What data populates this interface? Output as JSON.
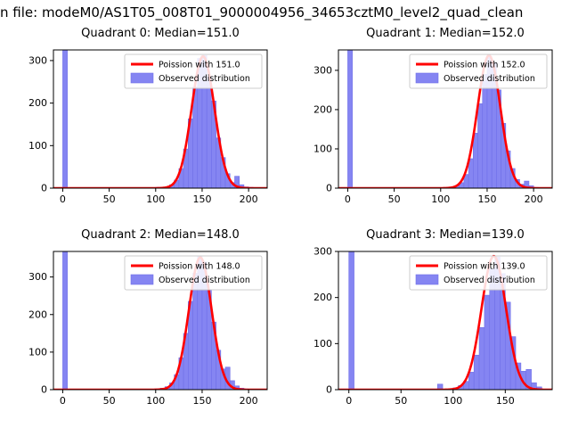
{
  "figure": {
    "suptitle": "n file: modeM0/AS1T05_008T01_9000004956_34653cztM0_level2_quad_clean",
    "background": "#ffffff"
  },
  "colors": {
    "fit_line": "#ff0000",
    "hist_fill": "#8585f2",
    "hist_edge": "#7070e8",
    "axis": "#000000",
    "tick_label": "#000000",
    "legend_border": "#cccccc",
    "legend_bg": "#ffffff"
  },
  "chart_data": [
    {
      "type": "bar",
      "subtype": "histogram-with-fit-line",
      "title": "Quadrant 0: Median=151.0",
      "median": 151.0,
      "legend": [
        "Poission with 151.0",
        "Observed distribution"
      ],
      "legend_position": "upper right",
      "xlim": [
        -10,
        220
      ],
      "ylim": [
        0,
        325
      ],
      "xticks": [
        0,
        50,
        100,
        150,
        200
      ],
      "yticks": [
        0,
        100,
        200,
        300
      ],
      "bin_width": 5,
      "bins": [
        [
          0,
          3000
        ],
        [
          95,
          1
        ],
        [
          100,
          2
        ],
        [
          105,
          2
        ],
        [
          110,
          3
        ],
        [
          115,
          8
        ],
        [
          120,
          19
        ],
        [
          125,
          46
        ],
        [
          130,
          92
        ],
        [
          135,
          163
        ],
        [
          140,
          238
        ],
        [
          145,
          305
        ],
        [
          150,
          312
        ],
        [
          155,
          262
        ],
        [
          160,
          205
        ],
        [
          165,
          118
        ],
        [
          170,
          72
        ],
        [
          175,
          34
        ],
        [
          180,
          13
        ],
        [
          185,
          28
        ],
        [
          190,
          8
        ],
        [
          195,
          3
        ],
        [
          200,
          2
        ]
      ],
      "fit": {
        "distribution": "poisson-gaussian-approx",
        "mean": 151,
        "sigma": 12.3,
        "amplitude": 310
      }
    },
    {
      "type": "bar",
      "subtype": "histogram-with-fit-line",
      "title": "Quadrant 1: Median=152.0",
      "median": 152.0,
      "legend": [
        "Poission with 152.0",
        "Observed distribution"
      ],
      "legend_position": "upper right",
      "xlim": [
        -10,
        220
      ],
      "ylim": [
        0,
        352
      ],
      "xticks": [
        0,
        50,
        100,
        150,
        200
      ],
      "yticks": [
        0,
        100,
        200,
        300
      ],
      "bin_width": 5,
      "bins": [
        [
          0,
          3000
        ],
        [
          105,
          2
        ],
        [
          110,
          3
        ],
        [
          115,
          6
        ],
        [
          120,
          14
        ],
        [
          125,
          35
        ],
        [
          130,
          75
        ],
        [
          135,
          140
        ],
        [
          140,
          215
        ],
        [
          145,
          290
        ],
        [
          150,
          335
        ],
        [
          155,
          320
        ],
        [
          160,
          250
        ],
        [
          165,
          165
        ],
        [
          170,
          95
        ],
        [
          175,
          50
        ],
        [
          180,
          22
        ],
        [
          185,
          10
        ],
        [
          190,
          18
        ],
        [
          195,
          6
        ],
        [
          200,
          2
        ]
      ],
      "fit": {
        "distribution": "poisson-gaussian-approx",
        "mean": 152,
        "sigma": 12.3,
        "amplitude": 338
      }
    },
    {
      "type": "bar",
      "subtype": "histogram-with-fit-line",
      "title": "Quadrant 2: Median=148.0",
      "median": 148.0,
      "legend": [
        "Poission with 148.0",
        "Observed distribution"
      ],
      "legend_position": "upper right",
      "xlim": [
        -10,
        220
      ],
      "ylim": [
        0,
        368
      ],
      "xticks": [
        0,
        50,
        100,
        150,
        200
      ],
      "yticks": [
        0,
        100,
        200,
        300
      ],
      "bin_width": 5,
      "bins": [
        [
          0,
          3000
        ],
        [
          100,
          2
        ],
        [
          105,
          4
        ],
        [
          110,
          8
        ],
        [
          115,
          18
        ],
        [
          120,
          40
        ],
        [
          125,
          85
        ],
        [
          130,
          150
        ],
        [
          135,
          235
        ],
        [
          140,
          310
        ],
        [
          145,
          355
        ],
        [
          150,
          340
        ],
        [
          155,
          265
        ],
        [
          160,
          180
        ],
        [
          165,
          105
        ],
        [
          170,
          55
        ],
        [
          175,
          60
        ],
        [
          180,
          24
        ],
        [
          185,
          10
        ],
        [
          190,
          4
        ],
        [
          195,
          2
        ]
      ],
      "fit": {
        "distribution": "poisson-gaussian-approx",
        "mean": 148,
        "sigma": 12.2,
        "amplitude": 352
      }
    },
    {
      "type": "bar",
      "subtype": "histogram-with-fit-line",
      "title": "Quadrant 3: Median=139.0",
      "median": 139.0,
      "legend": [
        "Poission with 139.0",
        "Observed distribution"
      ],
      "legend_position": "upper right",
      "xlim": [
        -10,
        195
      ],
      "ylim": [
        0,
        300
      ],
      "xticks": [
        0,
        50,
        100,
        150
      ],
      "yticks": [
        0,
        100,
        200,
        300
      ],
      "bin_width": 5,
      "bins": [
        [
          0,
          3000
        ],
        [
          85,
          12
        ],
        [
          100,
          4
        ],
        [
          105,
          9
        ],
        [
          110,
          18
        ],
        [
          115,
          38
        ],
        [
          120,
          75
        ],
        [
          125,
          135
        ],
        [
          130,
          205
        ],
        [
          135,
          262
        ],
        [
          140,
          288
        ],
        [
          145,
          252
        ],
        [
          150,
          190
        ],
        [
          155,
          115
        ],
        [
          160,
          58
        ],
        [
          165,
          40
        ],
        [
          170,
          44
        ],
        [
          175,
          15
        ],
        [
          180,
          6
        ]
      ],
      "fit": {
        "distribution": "poisson-gaussian-approx",
        "mean": 139,
        "sigma": 11.8,
        "amplitude": 290
      }
    }
  ]
}
